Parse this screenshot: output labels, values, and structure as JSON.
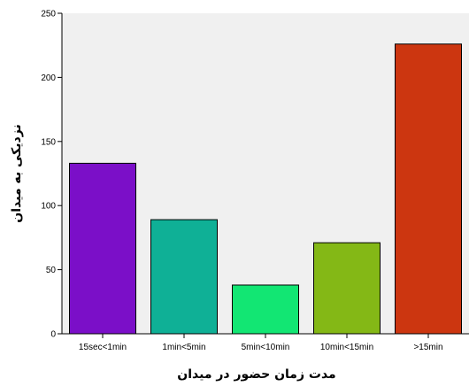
{
  "chart_data": {
    "type": "bar",
    "categories": [
      "15sec<1min",
      "1min<5min",
      "5min<10min",
      "10min<15min",
      ">15min"
    ],
    "values": [
      133,
      89,
      38,
      71,
      226
    ],
    "colors": [
      "#7b0fc8",
      "#0fb096",
      "#12e673",
      "#84b816",
      "#cc3610"
    ],
    "xlabel": "مدت زمان حضور در میدان",
    "ylabel": "نزدیکی به میدان",
    "ylim": [
      0,
      250
    ],
    "yticks": [
      0,
      50,
      100,
      150,
      200,
      250
    ],
    "plot_background": "#f0f0f0",
    "grid": false
  }
}
